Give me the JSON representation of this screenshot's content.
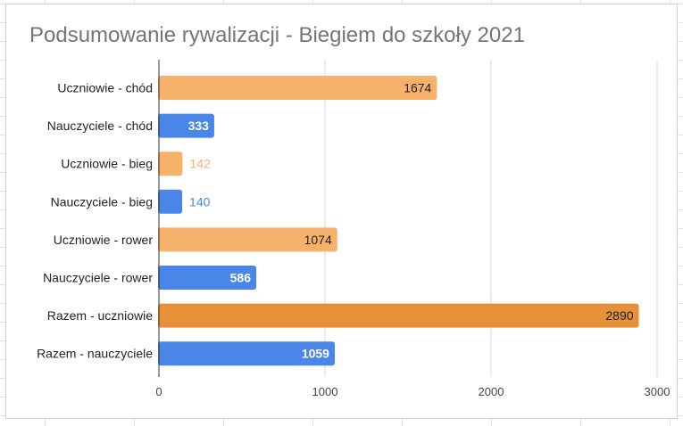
{
  "chart_data": {
    "type": "bar",
    "orientation": "horizontal",
    "title": "Podsumowanie rywalizacji - Biegiem do szkoły 2021",
    "xlabel": "",
    "ylabel": "",
    "xlim": [
      0,
      3000
    ],
    "x_ticks": [
      "0",
      "1000",
      "2000",
      "3000"
    ],
    "grid": true,
    "legend": "none",
    "categories": [
      "Uczniowie - chód",
      "Nauczyciele - chód",
      "Uczniowie - bieg",
      "Nauczyciele - bieg",
      "Uczniowie - rower",
      "Nauczyciele - rower",
      "Razem - uczniowie",
      "Razem - nauczyciele"
    ],
    "values": [
      1674,
      333,
      142,
      140,
      1074,
      586,
      2890,
      1059
    ],
    "bar_colors": [
      "#f6b26b",
      "#4a86e8",
      "#f6b26b",
      "#4a86e8",
      "#f6b26b",
      "#4a86e8",
      "#e69138",
      "#4a86e8"
    ],
    "label_colors_inside": [
      "#1f1f1f",
      "#ffffff",
      "#f6b26b",
      "#4a86e8",
      "#1f1f1f",
      "#ffffff",
      "#1f1f1f",
      "#ffffff"
    ]
  }
}
